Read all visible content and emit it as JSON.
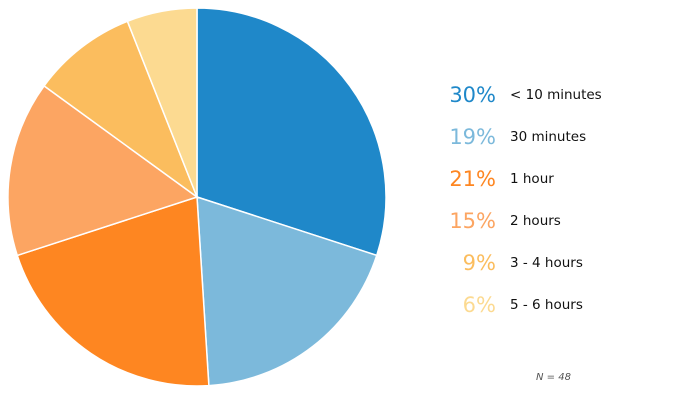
{
  "chart_data": {
    "type": "pie",
    "categories": [
      "< 10 minutes",
      "30 minutes",
      "1 hour",
      "2 hours",
      "3 - 4 hours",
      "5 - 6 hours"
    ],
    "values": [
      30,
      19,
      21,
      15,
      9,
      6
    ],
    "percent_labels": [
      "30%",
      "19%",
      "21%",
      "15%",
      "9%",
      "6%"
    ],
    "colors": [
      "#1f88c9",
      "#7cb9db",
      "#fe8621",
      "#fca562",
      "#fbbd5e",
      "#fcda91"
    ],
    "legend": "right",
    "start_angle": "12 o'clock, clockwise"
  },
  "footnote": "N = 48"
}
